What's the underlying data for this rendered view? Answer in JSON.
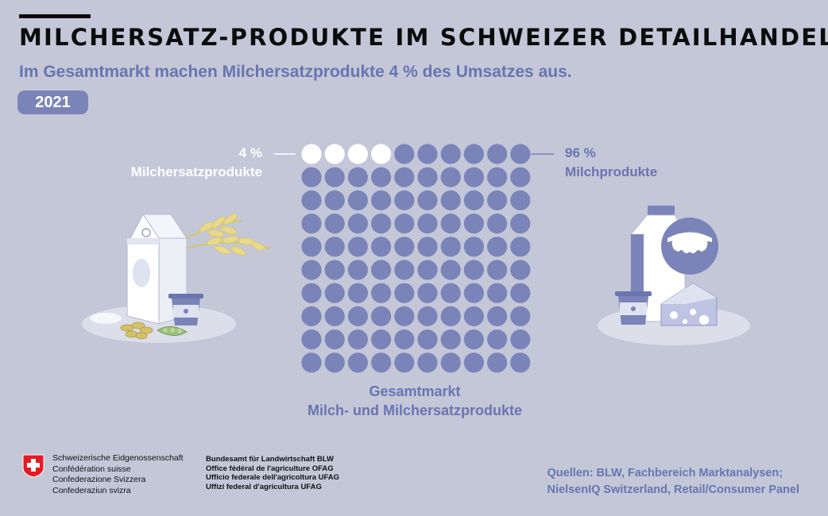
{
  "header": {
    "title": "MILCHERSATZ-PRODUKTE IM SCHWEIZER DETAILHANDEL",
    "subtitle": "Im Gesamtmarkt machen Milchersatzprodukte 4 % des Umsatzes aus.",
    "year": "2021"
  },
  "chart_data": {
    "type": "waffle",
    "grid": {
      "rows": 10,
      "cols": 10
    },
    "series": [
      {
        "name": "Milchersatzprodukte",
        "label": "4 %",
        "value": 4,
        "color": "#ffffff"
      },
      {
        "name": "Milchprodukte",
        "label": "96 %",
        "value": 96,
        "color": "#7b84b9"
      }
    ],
    "xlabel": "Gesamtmarkt",
    "xlabel_line2": "Milch- und Milchersatzprodukte"
  },
  "footer": {
    "confederation": [
      "Schweizerische Eidgenossenschaft",
      "Confédération suisse",
      "Confederazione Svizzera",
      "Confederaziun svizra"
    ],
    "office": [
      "Bundesamt für Landwirtschaft BLW",
      "Office fédéral de l'agriculture OFAG",
      "Ufficio federale dell'agricoltura UFAG",
      "Uffizi federal d'agricultura UFAG"
    ],
    "sources": [
      "Quellen: BLW, Fachbereich Marktanalysen;",
      "NielsenIQ Switzerland, Retail/Consumer Panel"
    ]
  },
  "icons": {
    "left": "plant-milk-carton-oat-rice-beans-icon",
    "right": "dairy-bottle-yogurt-cheese-icon",
    "logo": "swiss-cross-icon"
  }
}
